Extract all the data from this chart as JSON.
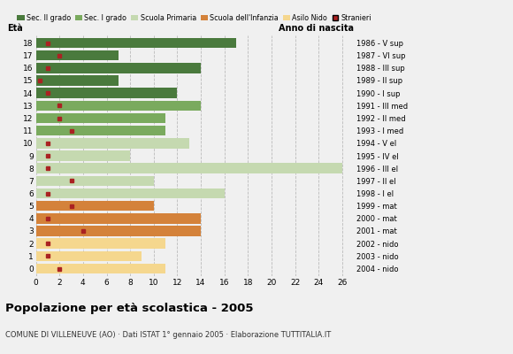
{
  "ages": [
    18,
    17,
    16,
    15,
    14,
    13,
    12,
    11,
    10,
    9,
    8,
    7,
    6,
    5,
    4,
    3,
    2,
    1,
    0
  ],
  "years": [
    "1986 - V sup",
    "1987 - VI sup",
    "1988 - III sup",
    "1989 - II sup",
    "1990 - I sup",
    "1991 - III med",
    "1992 - II med",
    "1993 - I med",
    "1994 - V el",
    "1995 - IV el",
    "1996 - III el",
    "1997 - II el",
    "1998 - I el",
    "1999 - mat",
    "2000 - mat",
    "2001 - mat",
    "2002 - nido",
    "2003 - nido",
    "2004 - nido"
  ],
  "bar_values": [
    17,
    7,
    14,
    7,
    12,
    14,
    11,
    11,
    13,
    8,
    26,
    10,
    16,
    10,
    14,
    14,
    11,
    9,
    11
  ],
  "stranieri": [
    1,
    2,
    1,
    0.3,
    1,
    2,
    2,
    3,
    1,
    1,
    1,
    3,
    1,
    3,
    1,
    4,
    1,
    1,
    2
  ],
  "colors": {
    "sec_II": "#4a7a3d",
    "sec_I": "#7aaa5e",
    "primaria": "#c5d9b0",
    "infanzia": "#d4823a",
    "nido": "#f5d78e",
    "stranieri": "#aa2222"
  },
  "category_per_age": {
    "18": "sec_II",
    "17": "sec_II",
    "16": "sec_II",
    "15": "sec_II",
    "14": "sec_II",
    "13": "sec_I",
    "12": "sec_I",
    "11": "sec_I",
    "10": "primaria",
    "9": "primaria",
    "8": "primaria",
    "7": "primaria",
    "6": "primaria",
    "5": "infanzia",
    "4": "infanzia",
    "3": "infanzia",
    "2": "nido",
    "1": "nido",
    "0": "nido"
  },
  "title": "Popolazione per età scolastica - 2005",
  "subtitle": "COMUNE DI VILLENEUVE (AO) · Dati ISTAT 1° gennaio 2005 · Elaborazione TUTTITALIA.IT",
  "xlabel_left": "Età",
  "xlabel_right": "Anno di nascita",
  "xlim": [
    0,
    27
  ],
  "xticks": [
    0,
    2,
    4,
    6,
    8,
    10,
    12,
    14,
    16,
    18,
    20,
    22,
    24,
    26
  ],
  "background_color": "#f0f0f0",
  "legend_labels": [
    "Sec. II grado",
    "Sec. I grado",
    "Scuola Primaria",
    "Scuola dell'Infanzia",
    "Asilo Nido",
    "Stranieri"
  ],
  "legend_colors": [
    "#4a7a3d",
    "#7aaa5e",
    "#c5d9b0",
    "#d4823a",
    "#f5d78e",
    "#aa2222"
  ]
}
